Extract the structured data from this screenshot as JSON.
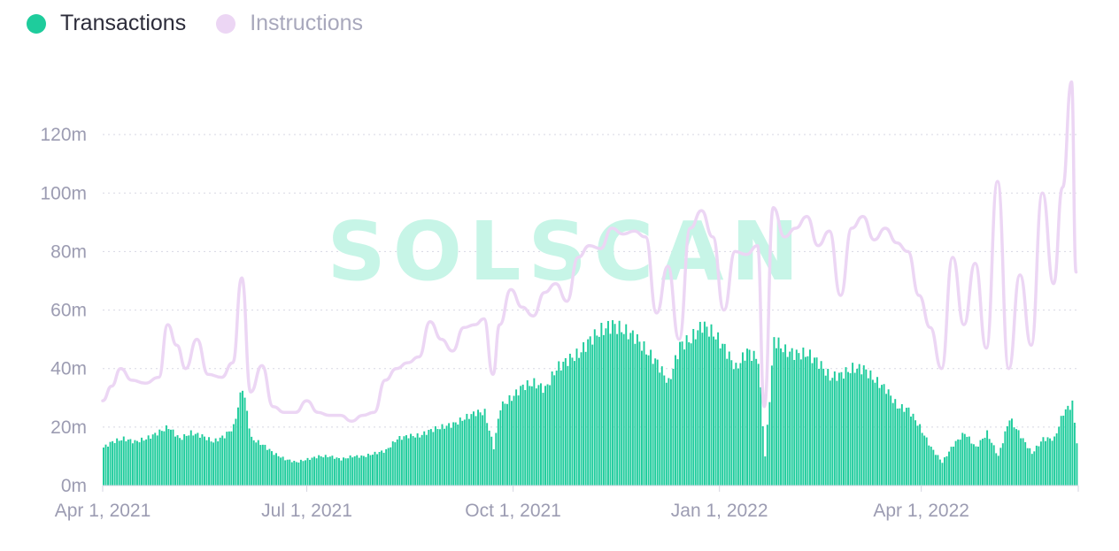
{
  "colors": {
    "transactions": "#1ecc9c",
    "instructions": "#ecd6f4",
    "axis_text": "#9c9cb2"
  },
  "legend": [
    {
      "label": "Transactions",
      "color": "#1ecc9c",
      "active": true
    },
    {
      "label": "Instructions",
      "color": "#ecd6f4",
      "active": false
    }
  ],
  "watermark": "SOLSCAN",
  "chart_data": {
    "type": "bar",
    "title": "",
    "xlabel": "",
    "ylabel": "",
    "x_range": [
      "2021-04-01",
      "2022-05-30"
    ],
    "ylim": [
      0,
      140000000
    ],
    "y_ticks": [
      {
        "value": 0,
        "label": "0m"
      },
      {
        "value": 20000000,
        "label": "20m"
      },
      {
        "value": 40000000,
        "label": "40m"
      },
      {
        "value": 60000000,
        "label": "60m"
      },
      {
        "value": 80000000,
        "label": "80m"
      },
      {
        "value": 100000000,
        "label": "100m"
      },
      {
        "value": 120000000,
        "label": "120m"
      }
    ],
    "x_ticks": [
      {
        "date": "2021-04-01",
        "label": "Apr 1, 2021"
      },
      {
        "date": "2021-07-01",
        "label": "Jul 1, 2021"
      },
      {
        "date": "2021-10-01",
        "label": "Oct 1, 2021"
      },
      {
        "date": "2022-01-01",
        "label": "Jan 1, 2022"
      },
      {
        "date": "2022-04-01",
        "label": "Apr 1, 2022"
      }
    ],
    "grid": true,
    "legend_position": "top-left",
    "series": [
      {
        "name": "Transactions",
        "type": "bar",
        "color": "#1ecc9c",
        "points": [
          [
            "2021-04-01",
            13000000
          ],
          [
            "2021-04-05",
            15000000
          ],
          [
            "2021-04-10",
            16000000
          ],
          [
            "2021-04-15",
            15000000
          ],
          [
            "2021-04-20",
            16000000
          ],
          [
            "2021-04-25",
            18000000
          ],
          [
            "2021-04-30",
            20000000
          ],
          [
            "2021-05-05",
            16000000
          ],
          [
            "2021-05-10",
            18000000
          ],
          [
            "2021-05-15",
            17000000
          ],
          [
            "2021-05-20",
            15000000
          ],
          [
            "2021-05-25",
            17000000
          ],
          [
            "2021-05-29",
            20000000
          ],
          [
            "2021-06-02",
            34000000
          ],
          [
            "2021-06-06",
            16000000
          ],
          [
            "2021-06-11",
            14000000
          ],
          [
            "2021-06-16",
            11000000
          ],
          [
            "2021-06-21",
            9000000
          ],
          [
            "2021-06-26",
            8000000
          ],
          [
            "2021-07-01",
            9000000
          ],
          [
            "2021-07-06",
            10000000
          ],
          [
            "2021-07-11",
            10000000
          ],
          [
            "2021-07-16",
            9000000
          ],
          [
            "2021-07-21",
            10000000
          ],
          [
            "2021-07-26",
            10000000
          ],
          [
            "2021-07-31",
            11000000
          ],
          [
            "2021-08-05",
            12000000
          ],
          [
            "2021-08-10",
            16000000
          ],
          [
            "2021-08-15",
            17000000
          ],
          [
            "2021-08-20",
            17000000
          ],
          [
            "2021-08-25",
            19000000
          ],
          [
            "2021-08-30",
            20000000
          ],
          [
            "2021-09-04",
            21000000
          ],
          [
            "2021-09-09",
            23000000
          ],
          [
            "2021-09-14",
            25000000
          ],
          [
            "2021-09-18",
            25000000
          ],
          [
            "2021-09-22",
            13000000
          ],
          [
            "2021-09-25",
            27000000
          ],
          [
            "2021-09-30",
            30000000
          ],
          [
            "2021-10-05",
            34000000
          ],
          [
            "2021-10-10",
            35000000
          ],
          [
            "2021-10-15",
            33000000
          ],
          [
            "2021-10-20",
            40000000
          ],
          [
            "2021-10-25",
            43000000
          ],
          [
            "2021-10-30",
            45000000
          ],
          [
            "2021-11-04",
            50000000
          ],
          [
            "2021-11-09",
            53000000
          ],
          [
            "2021-11-14",
            55000000
          ],
          [
            "2021-11-19",
            53000000
          ],
          [
            "2021-11-24",
            51000000
          ],
          [
            "2021-11-29",
            46000000
          ],
          [
            "2021-12-04",
            42000000
          ],
          [
            "2021-12-09",
            35000000
          ],
          [
            "2021-12-14",
            48000000
          ],
          [
            "2021-12-19",
            50000000
          ],
          [
            "2021-12-24",
            55000000
          ],
          [
            "2021-12-29",
            52000000
          ],
          [
            "2022-01-03",
            47000000
          ],
          [
            "2022-01-08",
            40000000
          ],
          [
            "2022-01-13",
            46000000
          ],
          [
            "2022-01-18",
            43000000
          ],
          [
            "2022-01-21",
            10000000
          ],
          [
            "2022-01-25",
            50000000
          ],
          [
            "2022-01-30",
            46000000
          ],
          [
            "2022-02-04",
            45000000
          ],
          [
            "2022-02-09",
            45000000
          ],
          [
            "2022-02-14",
            42000000
          ],
          [
            "2022-02-19",
            37000000
          ],
          [
            "2022-02-24",
            38000000
          ],
          [
            "2022-03-01",
            40000000
          ],
          [
            "2022-03-06",
            40000000
          ],
          [
            "2022-03-11",
            36000000
          ],
          [
            "2022-03-16",
            33000000
          ],
          [
            "2022-03-21",
            27000000
          ],
          [
            "2022-03-26",
            26000000
          ],
          [
            "2022-03-31",
            20000000
          ],
          [
            "2022-04-05",
            13000000
          ],
          [
            "2022-04-10",
            8000000
          ],
          [
            "2022-04-15",
            14000000
          ],
          [
            "2022-04-20",
            18000000
          ],
          [
            "2022-04-25",
            13000000
          ],
          [
            "2022-04-30",
            18000000
          ],
          [
            "2022-05-05",
            10000000
          ],
          [
            "2022-05-10",
            23000000
          ],
          [
            "2022-05-15",
            17000000
          ],
          [
            "2022-05-20",
            11000000
          ],
          [
            "2022-05-25",
            16000000
          ],
          [
            "2022-05-30",
            16000000
          ],
          [
            "2022-06-03",
            25000000
          ],
          [
            "2022-06-07",
            28000000
          ],
          [
            "2022-06-09",
            15000000
          ]
        ]
      },
      {
        "name": "Instructions",
        "type": "line",
        "color": "#ecd6f4",
        "points": [
          [
            "2021-04-01",
            29000000
          ],
          [
            "2021-04-05",
            34000000
          ],
          [
            "2021-04-09",
            40000000
          ],
          [
            "2021-04-14",
            36000000
          ],
          [
            "2021-04-20",
            35000000
          ],
          [
            "2021-04-26",
            37000000
          ],
          [
            "2021-04-30",
            55000000
          ],
          [
            "2021-05-04",
            48000000
          ],
          [
            "2021-05-08",
            40000000
          ],
          [
            "2021-05-13",
            50000000
          ],
          [
            "2021-05-18",
            38000000
          ],
          [
            "2021-05-24",
            37000000
          ],
          [
            "2021-05-29",
            42000000
          ],
          [
            "2021-06-02",
            71000000
          ],
          [
            "2021-06-06",
            32000000
          ],
          [
            "2021-06-11",
            41000000
          ],
          [
            "2021-06-16",
            27000000
          ],
          [
            "2021-06-21",
            25000000
          ],
          [
            "2021-06-26",
            25000000
          ],
          [
            "2021-07-01",
            29000000
          ],
          [
            "2021-07-06",
            25000000
          ],
          [
            "2021-07-11",
            24000000
          ],
          [
            "2021-07-16",
            24000000
          ],
          [
            "2021-07-21",
            22000000
          ],
          [
            "2021-07-26",
            24000000
          ],
          [
            "2021-07-31",
            25000000
          ],
          [
            "2021-08-05",
            36000000
          ],
          [
            "2021-08-10",
            40000000
          ],
          [
            "2021-08-15",
            42000000
          ],
          [
            "2021-08-20",
            44000000
          ],
          [
            "2021-08-25",
            56000000
          ],
          [
            "2021-08-30",
            50000000
          ],
          [
            "2021-09-04",
            46000000
          ],
          [
            "2021-09-09",
            54000000
          ],
          [
            "2021-09-14",
            55000000
          ],
          [
            "2021-09-18",
            57000000
          ],
          [
            "2021-09-22",
            38000000
          ],
          [
            "2021-09-25",
            55000000
          ],
          [
            "2021-09-30",
            67000000
          ],
          [
            "2021-10-05",
            61000000
          ],
          [
            "2021-10-10",
            58000000
          ],
          [
            "2021-10-15",
            66000000
          ],
          [
            "2021-10-20",
            69000000
          ],
          [
            "2021-10-25",
            63000000
          ],
          [
            "2021-10-30",
            78000000
          ],
          [
            "2021-11-04",
            82000000
          ],
          [
            "2021-11-09",
            81000000
          ],
          [
            "2021-11-14",
            88000000
          ],
          [
            "2021-11-19",
            86000000
          ],
          [
            "2021-11-24",
            87000000
          ],
          [
            "2021-11-29",
            85000000
          ],
          [
            "2021-12-04",
            59000000
          ],
          [
            "2021-12-09",
            75000000
          ],
          [
            "2021-12-14",
            50000000
          ],
          [
            "2021-12-19",
            88000000
          ],
          [
            "2021-12-24",
            94000000
          ],
          [
            "2021-12-29",
            85000000
          ],
          [
            "2022-01-03",
            60000000
          ],
          [
            "2022-01-08",
            80000000
          ],
          [
            "2022-01-13",
            79000000
          ],
          [
            "2022-01-18",
            82000000
          ],
          [
            "2022-01-21",
            27000000
          ],
          [
            "2022-01-25",
            95000000
          ],
          [
            "2022-01-30",
            85000000
          ],
          [
            "2022-02-04",
            88000000
          ],
          [
            "2022-02-09",
            92000000
          ],
          [
            "2022-02-14",
            82000000
          ],
          [
            "2022-02-19",
            87000000
          ],
          [
            "2022-02-24",
            65000000
          ],
          [
            "2022-03-01",
            88000000
          ],
          [
            "2022-03-06",
            92000000
          ],
          [
            "2022-03-11",
            84000000
          ],
          [
            "2022-03-16",
            88000000
          ],
          [
            "2022-03-21",
            83000000
          ],
          [
            "2022-03-26",
            80000000
          ],
          [
            "2022-03-31",
            65000000
          ],
          [
            "2022-04-05",
            54000000
          ],
          [
            "2022-04-10",
            40000000
          ],
          [
            "2022-04-15",
            78000000
          ],
          [
            "2022-04-20",
            55000000
          ],
          [
            "2022-04-25",
            76000000
          ],
          [
            "2022-04-30",
            47000000
          ],
          [
            "2022-05-05",
            104000000
          ],
          [
            "2022-05-10",
            40000000
          ],
          [
            "2022-05-15",
            72000000
          ],
          [
            "2022-05-20",
            48000000
          ],
          [
            "2022-05-25",
            100000000
          ],
          [
            "2022-05-30",
            69000000
          ],
          [
            "2022-06-03",
            102000000
          ],
          [
            "2022-06-07",
            138000000
          ],
          [
            "2022-06-09",
            73000000
          ]
        ]
      }
    ]
  }
}
